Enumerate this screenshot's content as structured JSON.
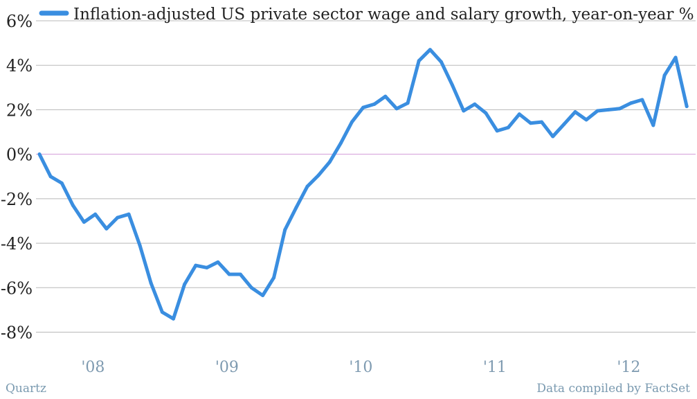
{
  "chart_data": {
    "type": "line",
    "title": "",
    "xlabel": "",
    "ylabel": "",
    "ylim": [
      -8,
      6
    ],
    "yticks": [
      6,
      4,
      2,
      0,
      -2,
      -4,
      -6,
      -8
    ],
    "ytick_labels": [
      "6%",
      "4%",
      "2%",
      "0%",
      "-2%",
      "-4%",
      "-6%",
      "-8%"
    ],
    "xticks": [
      2008,
      2009,
      2010,
      2011,
      2012
    ],
    "xtick_labels": [
      "'08",
      "'09",
      "'10",
      "'11",
      "'12"
    ],
    "xlim": [
      2007.7,
      2012.6
    ],
    "grid": true,
    "legend_position": "top",
    "colors": {
      "series": "#3a8ee0",
      "grid": "#b8b8b8",
      "zero_line": "#d39ad8"
    },
    "series": [
      {
        "name": "Inflation-adjusted US private sector wage and salary growth, year-on-year % change",
        "x": [
          2007.75,
          2007.833,
          2007.917,
          2008.0,
          2008.083,
          2008.167,
          2008.25,
          2008.333,
          2008.417,
          2008.5,
          2008.583,
          2008.667,
          2008.75,
          2008.833,
          2008.917,
          2009.0,
          2009.083,
          2009.167,
          2009.25,
          2009.333,
          2009.417,
          2009.5,
          2009.583,
          2009.667,
          2009.75,
          2009.833,
          2009.917,
          2010.0,
          2010.083,
          2010.167,
          2010.25,
          2010.333,
          2010.417,
          2010.5,
          2010.583,
          2010.667,
          2010.75,
          2010.833,
          2010.917,
          2011.0,
          2011.083,
          2011.167,
          2011.25,
          2011.333,
          2011.417,
          2011.5,
          2011.583,
          2011.667,
          2011.75,
          2011.833,
          2011.917,
          2012.0,
          2012.083,
          2012.167,
          2012.25,
          2012.333,
          2012.417,
          2012.5,
          2012.583
        ],
        "values": [
          0.0,
          -1.0,
          -1.3,
          -2.3,
          -3.05,
          -2.7,
          -3.35,
          -2.85,
          -2.7,
          -4.1,
          -5.8,
          -7.1,
          -7.4,
          -5.85,
          -5.0,
          -5.1,
          -4.85,
          -5.4,
          -5.4,
          -6.0,
          -6.35,
          -5.55,
          -3.4,
          -2.4,
          -1.45,
          -0.95,
          -0.35,
          0.5,
          1.45,
          2.1,
          2.25,
          2.6,
          2.05,
          2.3,
          4.2,
          4.7,
          4.15,
          3.1,
          1.95,
          2.25,
          1.85,
          1.05,
          1.2,
          1.8,
          1.4,
          1.45,
          0.8,
          1.35,
          1.9,
          1.55,
          1.95,
          2.0,
          2.05,
          2.3,
          2.45,
          1.3,
          3.55,
          4.35,
          2.15
        ]
      }
    ]
  },
  "footer": {
    "source_left": "Quartz",
    "source_right": "Data compiled by FactSet"
  }
}
